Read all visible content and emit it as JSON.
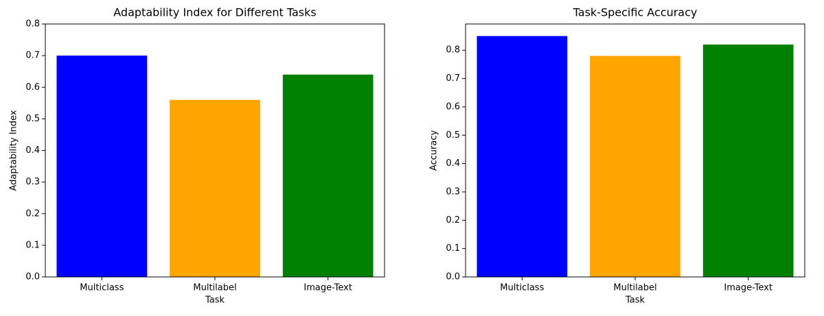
{
  "chart_data": [
    {
      "type": "bar",
      "title": "Adaptability Index for Different Tasks",
      "x_label": "Task",
      "y_label": "Adaptability Index",
      "categories": [
        "Multiclass",
        "Multilabel",
        "Image-Text"
      ],
      "values": [
        0.7,
        0.56,
        0.64
      ],
      "colors": [
        "#0000ff",
        "#ffa500",
        "#008000"
      ],
      "ylim": [
        0,
        0.8
      ],
      "yticks": [
        {
          "value": 0,
          "label": "0.0"
        },
        0.1,
        0.2,
        0.3,
        0.4,
        0.5,
        0.6,
        0.7,
        0.8
      ],
      "grid": false
    },
    {
      "type": "bar",
      "title": "Task-Specific Accuracy",
      "x_label": "Task",
      "y_label": "Accuracy",
      "categories": [
        "Multiclass",
        "Multilabel",
        "Image-Text"
      ],
      "values": [
        0.85,
        0.78,
        0.82
      ],
      "colors": [
        "#0000ff",
        "#ffa500",
        "#008000"
      ],
      "ylim": [
        0,
        0.8925
      ],
      "yticks": [
        {
          "value": 0,
          "label": "0.0"
        },
        0.1,
        0.2,
        0.3,
        0.4,
        0.5,
        0.6,
        0.7,
        0.8
      ],
      "grid": false
    }
  ]
}
